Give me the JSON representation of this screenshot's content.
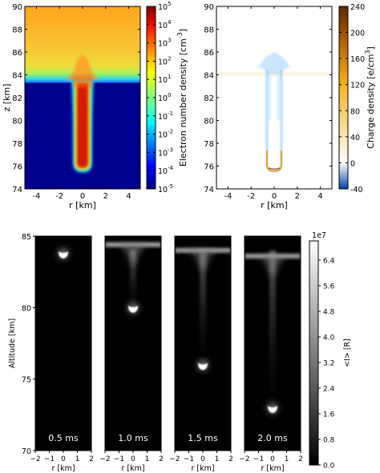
{
  "chart_data": [
    {
      "type": "heatmap",
      "id": "electron-density",
      "xlabel": "r [km]",
      "ylabel": "z [km]",
      "xlim": [
        -5,
        5
      ],
      "ylim": [
        74,
        90
      ],
      "x_ticks": [
        "-4",
        "-2",
        "0",
        "2",
        "4"
      ],
      "y_ticks": [
        "74",
        "76",
        "78",
        "80",
        "82",
        "84",
        "86",
        "88",
        "90"
      ],
      "y_tick_values": [
        74,
        76,
        78,
        80,
        82,
        84,
        86,
        88,
        90
      ],
      "colorbar": {
        "label": "Electron number density [cm",
        "label_sup": "-3",
        "label_close": "]",
        "scale": "log",
        "range": [
          -5,
          5
        ],
        "tick_base": "10",
        "tick_exponents": [
          "-5",
          "-4",
          "-3",
          "-2",
          "-1",
          "0",
          "1",
          "2",
          "3",
          "4",
          "5"
        ],
        "colormap": "jet"
      },
      "features": {
        "ionosphere_boundary_km": 83.3,
        "ionosphere_density_exp": 2,
        "background_density_exp": -5,
        "channel_tip_km": 75.7,
        "channel_core_density_exp": 4.5,
        "channel_half_width_km": 0.7
      },
      "colors": {
        "background": "#00008f",
        "ionosphere": "#f5c233",
        "channel_core": "#d31a00"
      }
    },
    {
      "type": "heatmap",
      "id": "charge-density",
      "xlabel": "r [km]",
      "ylabel": "",
      "xlim": [
        -5,
        5
      ],
      "ylim": [
        74,
        90
      ],
      "x_ticks": [
        "-4",
        "-2",
        "0",
        "2",
        "4"
      ],
      "y_ticks": [
        "74",
        "76",
        "78",
        "80",
        "82",
        "84",
        "86",
        "88",
        "90"
      ],
      "y_tick_values": [
        74,
        76,
        78,
        80,
        82,
        84,
        86,
        88,
        90
      ],
      "colorbar": {
        "label": "Charge density [e/cm",
        "label_sup": "3",
        "label_close": "]",
        "range": [
          -40,
          240
        ],
        "ticks": [
          "-40",
          "0",
          "40",
          "80",
          "120",
          "160",
          "200",
          "240"
        ],
        "tick_values": [
          -40,
          0,
          40,
          80,
          120,
          160,
          200,
          240
        ],
        "colors": [
          "#0044aa",
          "#ffffff",
          "#f7b21f",
          "#a05000",
          "#5a2800"
        ]
      },
      "features": {
        "positive_tip_km": 75.7,
        "negative_head_km": 85.0
      }
    },
    {
      "type": "heatmap",
      "id": "optical-emission",
      "ylabel": "Altitude [km]",
      "ylim": [
        70,
        85
      ],
      "y_ticks": [
        "70",
        "75",
        "80",
        "85"
      ],
      "y_tick_values": [
        70,
        75,
        80,
        85
      ],
      "xlabel": "r [km]",
      "xlim": [
        -2,
        2
      ],
      "x_ticks": [
        "−2",
        "−1",
        "0",
        "1",
        "2"
      ],
      "panels": [
        {
          "label": "0.5 ms",
          "head_km": 83.6,
          "tail_top_km": 84.0,
          "layer_km": null
        },
        {
          "label": "1.0 ms",
          "head_km": 79.8,
          "tail_top_km": 84.0,
          "layer_km": 84.4
        },
        {
          "label": "1.5 ms",
          "head_km": 75.8,
          "tail_top_km": 84.0,
          "layer_km": 84.0
        },
        {
          "label": "2.0 ms",
          "head_km": 72.8,
          "tail_top_km": 84.0,
          "layer_km": 83.6
        }
      ],
      "colorbar": {
        "label": "<I> [R]",
        "scale_label": "1e7",
        "range": [
          0,
          7.0
        ],
        "ticks": [
          "0.0",
          "0.8",
          "1.6",
          "2.4",
          "3.2",
          "4.0",
          "4.8",
          "5.6",
          "6.4"
        ],
        "tick_values": [
          0,
          0.8,
          1.6,
          2.4,
          3.2,
          4.0,
          4.8,
          5.6,
          6.4
        ],
        "colormap": "gray"
      }
    }
  ]
}
